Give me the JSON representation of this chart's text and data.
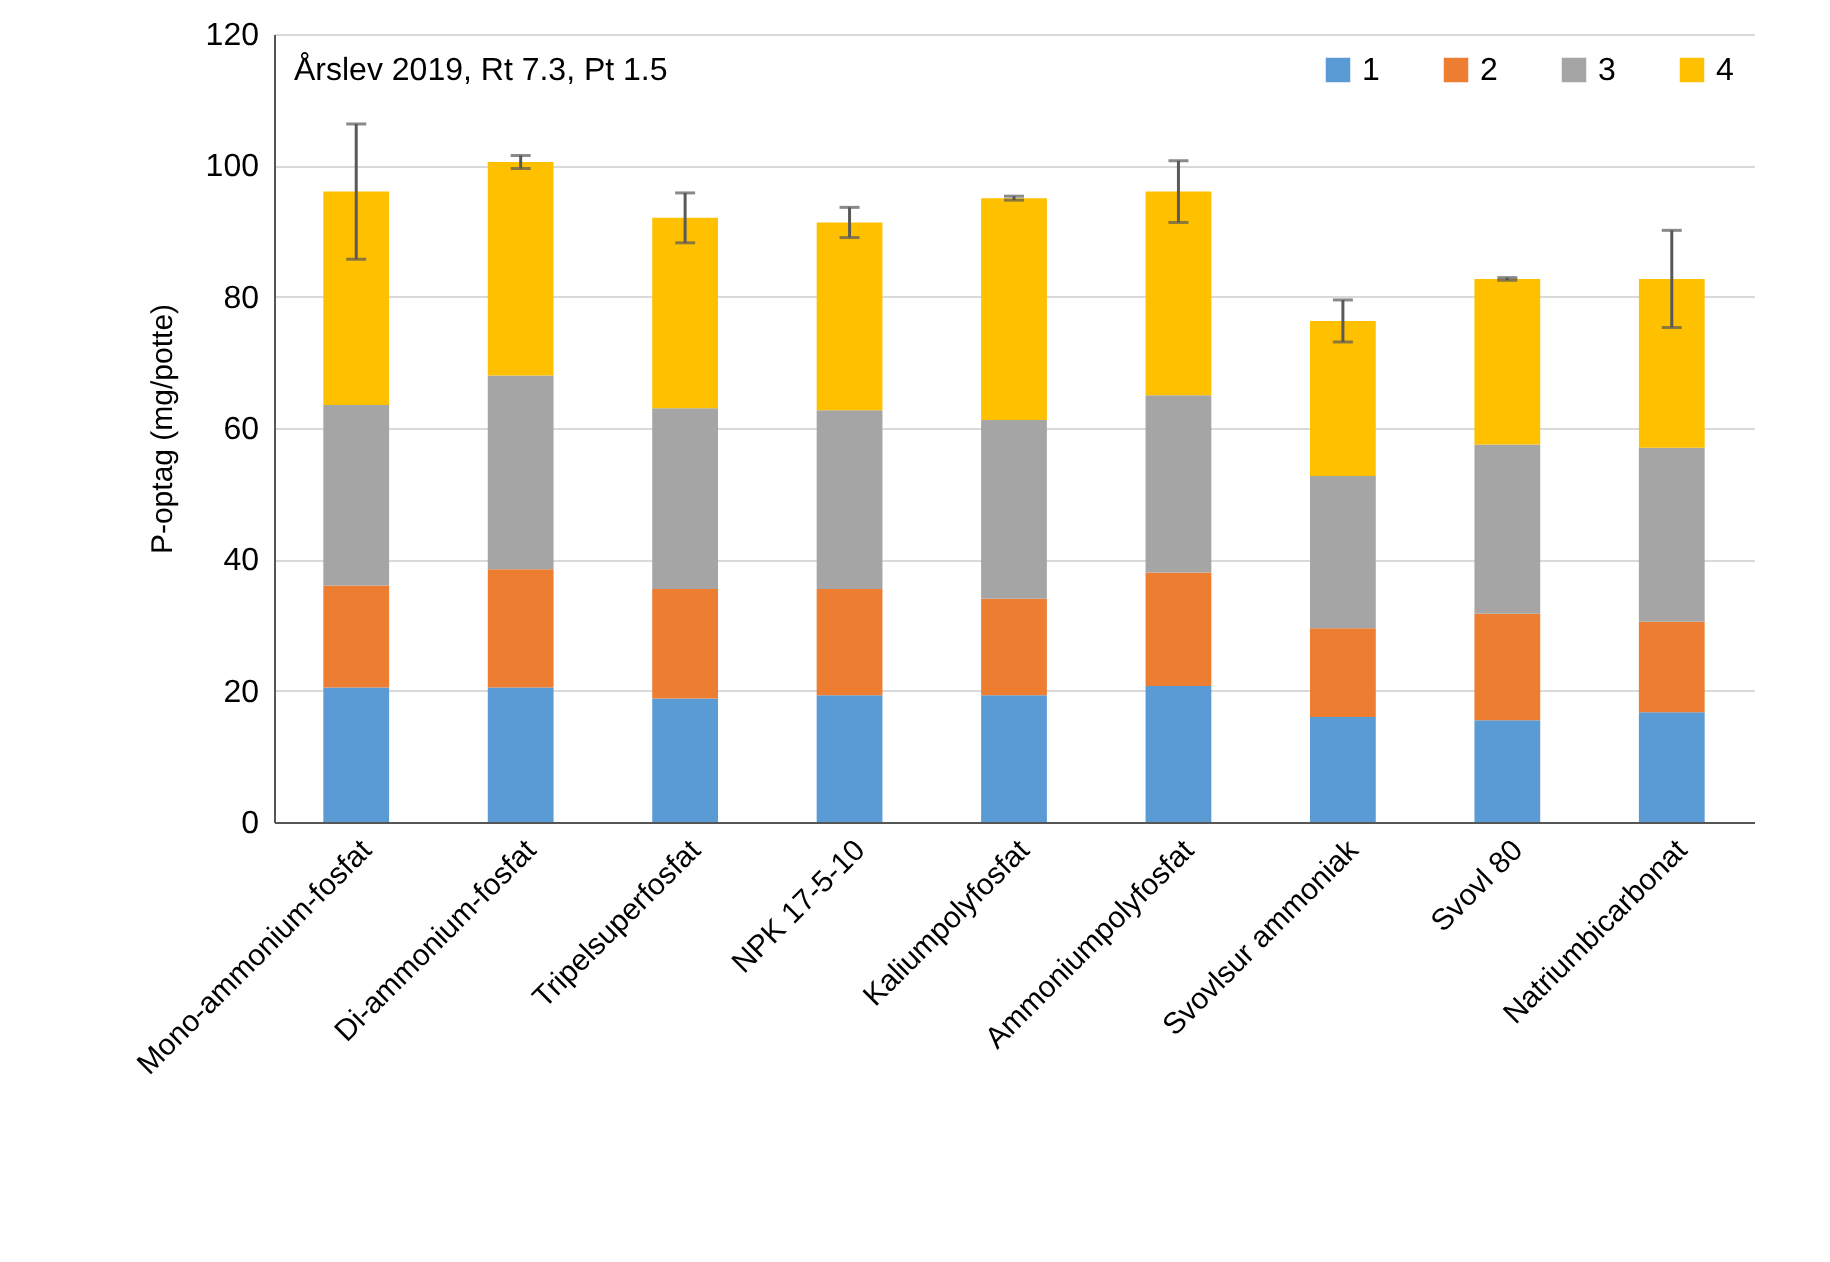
{
  "chart_data": {
    "type": "bar",
    "title": "Årslev 2019, Rt 7.3, Pt 1.5",
    "ylabel": "P-optag (mg/potte)",
    "stacked": true,
    "categories": [
      "Mono-ammonium-fosfat",
      "Di-ammonium-fosfat",
      "Tripelsuperfosfat",
      "NPK 17-5-10",
      "Kaliumpolyfosfat",
      "Ammoniumpolyfosfat",
      "Svovlsur ammoniak",
      "Svovl 80",
      "Natriumbicarbonat"
    ],
    "series": [
      {
        "name": "1",
        "color": "#5b9bd5",
        "values": [
          20.5,
          20.5,
          18.8,
          19.3,
          19.3,
          20.7,
          16,
          15.5,
          16.7
        ]
      },
      {
        "name": "2",
        "color": "#ed7d31",
        "values": [
          15.5,
          18,
          16.7,
          16.2,
          14.7,
          17.3,
          13.5,
          16.2,
          13.8
        ]
      },
      {
        "name": "3",
        "color": "#a5a5a5",
        "values": [
          27.5,
          29.5,
          27.5,
          27.2,
          27.2,
          27,
          23.2,
          25.8,
          26.5
        ]
      },
      {
        "name": "4",
        "color": "#ffc000",
        "values": [
          32.5,
          32.5,
          29,
          28.6,
          33.8,
          31,
          23.6,
          25.2,
          25.7
        ],
        "errors": [
          10.3,
          1,
          3.8,
          2.3,
          0.3,
          4.7,
          3.2,
          0.2,
          7.4
        ]
      }
    ],
    "ylim": [
      0,
      120
    ],
    "yticks": [
      0,
      20,
      40,
      60,
      80,
      100,
      120
    ],
    "grid": "y",
    "legend": "top right"
  }
}
